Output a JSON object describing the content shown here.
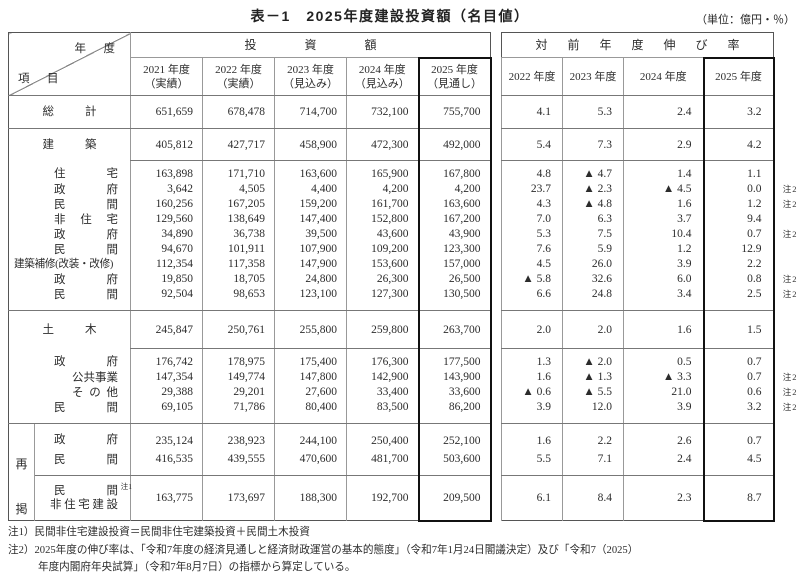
{
  "title": "表－1　2025年度建設投資額（名目値）",
  "unit_label": "（単位：億円・％）",
  "left_table": {
    "corner": {
      "top": "年　度",
      "bottom": "項　目"
    },
    "group_header": "投　資　額",
    "col_headers": [
      {
        "year": "2021 年度",
        "status": "（実績）"
      },
      {
        "year": "2022 年度",
        "status": "（実績）"
      },
      {
        "year": "2023 年度",
        "status": "（見込み）"
      },
      {
        "year": "2024 年度",
        "status": "（見込み）"
      },
      {
        "year": "2025 年度",
        "status": "（見通し）"
      }
    ]
  },
  "right_table": {
    "group_header": "対　前　年　度　伸　び　率",
    "col_headers": [
      "2022 年度",
      "2023 年度",
      "2024 年度",
      "2025 年度"
    ]
  },
  "rekei_label": "再掲",
  "note2_marker": "注2",
  "rows": [
    {
      "id": "soukei",
      "type": "total",
      "indent": "sec",
      "label": "総計",
      "values": [
        "651,659",
        "678,478",
        "714,700",
        "732,100",
        "755,700"
      ],
      "growth": [
        "4.1",
        "5.3",
        "2.4",
        "3.2"
      ],
      "note2": false
    },
    {
      "id": "kenchiku",
      "type": "section-a",
      "indent": "sec",
      "label": "建築",
      "values": [
        "405,812",
        "427,717",
        "458,900",
        "472,300",
        "492,000"
      ],
      "growth": [
        "5.4",
        "7.3",
        "2.9",
        "4.2"
      ],
      "note2": false
    },
    {
      "id": "juutaku",
      "type": "sub-first",
      "indent": "sub",
      "label": "住宅",
      "values": [
        "163,898",
        "171,710",
        "163,600",
        "165,900",
        "167,800"
      ],
      "growth": [
        "4.8",
        "▲ 4.7",
        "1.4",
        "1.1"
      ],
      "note2": false
    },
    {
      "id": "juutaku-seifu",
      "type": "sub",
      "indent": "sub",
      "label": "政府",
      "values": [
        "3,642",
        "4,505",
        "4,400",
        "4,200",
        "4,200"
      ],
      "growth": [
        "23.7",
        "▲ 2.3",
        "▲ 4.5",
        "0.0"
      ],
      "note2": true
    },
    {
      "id": "juutaku-minkan",
      "type": "sub",
      "indent": "sub",
      "label": "民間",
      "values": [
        "160,256",
        "167,205",
        "159,200",
        "161,700",
        "163,600"
      ],
      "growth": [
        "4.3",
        "▲ 4.8",
        "1.6",
        "1.2"
      ],
      "note2": true
    },
    {
      "id": "hijuutaku",
      "type": "sub",
      "indent": "sub",
      "label": "非住宅",
      "values": [
        "129,560",
        "138,649",
        "147,400",
        "152,800",
        "167,200"
      ],
      "growth": [
        "7.0",
        "6.3",
        "3.7",
        "9.4"
      ],
      "note2": false
    },
    {
      "id": "hijuutaku-seifu",
      "type": "sub",
      "indent": "sub",
      "label": "政府",
      "values": [
        "34,890",
        "36,738",
        "39,500",
        "43,600",
        "43,900"
      ],
      "growth": [
        "5.3",
        "7.5",
        "10.4",
        "0.7"
      ],
      "note2": true
    },
    {
      "id": "hijuutaku-minkan",
      "type": "sub",
      "indent": "sub",
      "label": "民間",
      "values": [
        "94,670",
        "101,911",
        "107,900",
        "109,200",
        "123,300"
      ],
      "growth": [
        "7.6",
        "5.9",
        "1.2",
        "12.9"
      ],
      "note2": false
    },
    {
      "id": "hoshuu",
      "type": "sub",
      "indent": "wide",
      "label": "建築補修(改装・改修)",
      "values": [
        "112,354",
        "117,358",
        "147,900",
        "153,600",
        "157,000"
      ],
      "growth": [
        "4.5",
        "26.0",
        "3.9",
        "2.2"
      ],
      "note2": false
    },
    {
      "id": "hoshuu-seifu",
      "type": "sub",
      "indent": "sub",
      "label": "政府",
      "values": [
        "19,850",
        "18,705",
        "24,800",
        "26,300",
        "26,500"
      ],
      "growth": [
        "▲ 5.8",
        "32.6",
        "6.0",
        "0.8"
      ],
      "note2": true
    },
    {
      "id": "hoshuu-minkan",
      "type": "sub-last",
      "indent": "sub",
      "label": "民間",
      "values": [
        "92,504",
        "98,653",
        "123,100",
        "127,300",
        "130,500"
      ],
      "growth": [
        "6.6",
        "24.8",
        "3.4",
        "2.5"
      ],
      "note2": true
    },
    {
      "id": "doboku",
      "type": "section-b",
      "indent": "sec",
      "label": "土木",
      "values": [
        "245,847",
        "250,761",
        "255,800",
        "259,800",
        "263,700"
      ],
      "growth": [
        "2.0",
        "2.0",
        "1.6",
        "1.5"
      ],
      "note2": false
    },
    {
      "id": "doboku-seifu",
      "type": "sub-first",
      "indent": "sub",
      "label": "政府",
      "values": [
        "176,742",
        "178,975",
        "175,400",
        "176,300",
        "177,500"
      ],
      "growth": [
        "1.3",
        "▲ 2.0",
        "0.5",
        "0.7"
      ],
      "note2": false
    },
    {
      "id": "koukyou-jigyou",
      "type": "sub",
      "indent": "deep4",
      "label": "公共事業",
      "values": [
        "147,354",
        "149,774",
        "147,800",
        "142,900",
        "143,900"
      ],
      "growth": [
        "1.6",
        "▲ 1.3",
        "▲ 3.3",
        "0.7"
      ],
      "note2": true
    },
    {
      "id": "sonota",
      "type": "sub",
      "indent": "deep3",
      "label": "その他",
      "values": [
        "29,388",
        "29,201",
        "27,600",
        "33,400",
        "33,600"
      ],
      "growth": [
        "▲ 0.6",
        "▲ 5.5",
        "21.0",
        "0.6"
      ],
      "note2": true
    },
    {
      "id": "doboku-minkan",
      "type": "sub-last",
      "indent": "sub",
      "label": "民間",
      "values": [
        "69,105",
        "71,786",
        "80,400",
        "83,500",
        "86,200"
      ],
      "growth": [
        "3.9",
        "12.0",
        "3.9",
        "3.2"
      ],
      "note2": true
    },
    {
      "id": "saikei-seifu",
      "type": "rekei-a",
      "indent": "sub",
      "label": "政府",
      "values": [
        "235,124",
        "238,923",
        "244,100",
        "250,400",
        "252,100"
      ],
      "growth": [
        "1.6",
        "2.2",
        "2.6",
        "0.7"
      ],
      "note2": false
    },
    {
      "id": "saikei-minkan",
      "type": "rekei-b",
      "indent": "sub",
      "label": "民間",
      "values": [
        "416,535",
        "439,555",
        "470,600",
        "481,700",
        "503,600"
      ],
      "growth": [
        "5.5",
        "7.1",
        "2.4",
        "4.5"
      ],
      "note2": false
    },
    {
      "id": "saikei-minkan-hijuutaku",
      "type": "rekei-c",
      "indent": "sub",
      "label": "民間",
      "sup": "注1",
      "label2": "非住宅建設",
      "values": [
        "163,775",
        "173,697",
        "188,300",
        "192,700",
        "209,500"
      ],
      "growth": [
        "6.1",
        "8.4",
        "2.3",
        "8.7"
      ],
      "note2": false
    }
  ],
  "footnotes": [
    "注1）民間非住宅建設投資＝民間非住宅建築投資＋民間土木投資",
    "注2）2025年度の伸び率は、「令和7年度の経済見通しと経済財政運営の基本的態度」（令和7年1月24日閣議決定）及び「令和7（2025）",
    "年度内閣府年央試算」（令和7年8月7日）の指標から算定している。"
  ]
}
